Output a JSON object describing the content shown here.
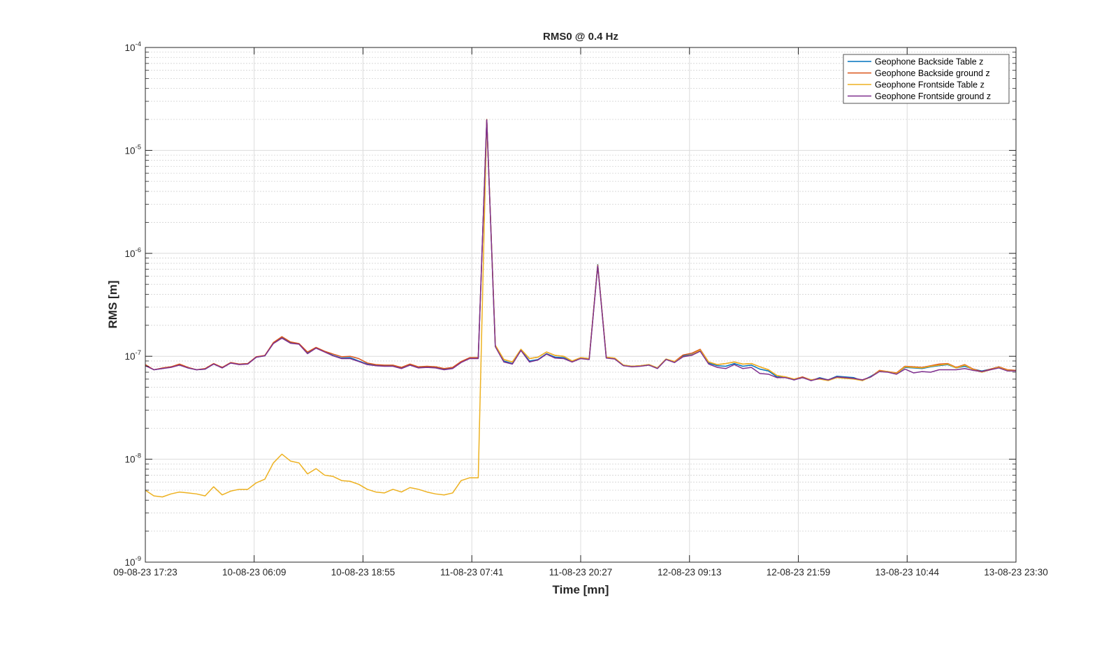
{
  "chart_data": {
    "type": "line",
    "title": "RMS0 @ 0.4 Hz",
    "xlabel": "Time [mn]",
    "ylabel": "RMS [m]",
    "yscale": "log",
    "ylim": [
      1e-09,
      0.0001
    ],
    "xlim": [
      "09-08-23 17:23",
      "13-08-23 23:30"
    ],
    "grid": true,
    "legend_location": "top-right",
    "x_tick_labels": [
      "09-08-23 17:23",
      "10-08-23 06:09",
      "10-08-23 18:55",
      "11-08-23 07:41",
      "11-08-23 20:27",
      "12-08-23 09:13",
      "12-08-23 21:59",
      "13-08-23 10:44",
      "13-08-23 23:30"
    ],
    "y_ticks": [
      {
        "base": "10",
        "exp": "-9"
      },
      {
        "base": "10",
        "exp": "-8"
      },
      {
        "base": "10",
        "exp": "-7"
      },
      {
        "base": "10",
        "exp": "-6"
      },
      {
        "base": "10",
        "exp": "-5"
      },
      {
        "base": "10",
        "exp": "-4"
      }
    ],
    "sample_interval_hours": 1,
    "series": [
      {
        "name": "Geophone Backside Table z",
        "color": "#0072BD",
        "values": [
          8.2e-08,
          7.4e-08,
          7.6e-08,
          7.9e-08,
          8.3e-08,
          7.7e-08,
          7.4e-08,
          7.5e-08,
          8.4e-08,
          7.8e-08,
          8.6e-08,
          8.4e-08,
          8.5e-08,
          9.8e-08,
          1.01e-07,
          1.34e-07,
          1.53e-07,
          1.36e-07,
          1.32e-07,
          1.08e-07,
          1.21e-07,
          1.11e-07,
          1.02e-07,
          9.6e-08,
          9.7e-08,
          9e-08,
          8.4e-08,
          8.2e-08,
          8.1e-08,
          8.1e-08,
          7.7e-08,
          8.3e-08,
          7.8e-08,
          7.9e-08,
          7.8e-08,
          7.5e-08,
          7.7e-08,
          8.8e-08,
          9.6e-08,
          9.6e-08,
          2e-05,
          1.25e-07,
          9e-08,
          8.5e-08,
          1.15e-07,
          9e-08,
          9.3e-08,
          1.06e-07,
          9.8e-08,
          9.7e-08,
          8.9e-08,
          9.6e-08,
          9.4e-08,
          7.8e-07,
          9.7e-08,
          9.5e-08,
          8.2e-08,
          8e-08,
          8.1e-08,
          8.3e-08,
          7.7e-08,
          9.4e-08,
          8.8e-08,
          1.01e-07,
          1.04e-07,
          1.14e-07,
          8.6e-08,
          8.1e-08,
          8e-08,
          8.5e-08,
          8e-08,
          8.2e-08,
          7.5e-08,
          7.2e-08,
          6.3e-08,
          6.3e-08,
          5.9e-08,
          6.3e-08,
          5.8e-08,
          6.2e-08,
          5.9e-08,
          6.4e-08,
          6.3e-08,
          6.2e-08,
          5.8e-08,
          6.4e-08,
          7.2e-08,
          7.1e-08,
          6.8e-08,
          7.8e-08,
          7.7e-08,
          7.6e-08,
          7.9e-08,
          8.1e-08,
          8.3e-08,
          7.7e-08,
          8e-08,
          7.5e-08,
          7.2e-08,
          7.5e-08,
          7.9e-08,
          7.3e-08,
          7.3e-08
        ]
      },
      {
        "name": "Geophone Backside ground z",
        "color": "#D95319",
        "values": [
          8.3e-08,
          7.4e-08,
          7.7e-08,
          7.9e-08,
          8.4e-08,
          7.8e-08,
          7.4e-08,
          7.6e-08,
          8.5e-08,
          7.8e-08,
          8.7e-08,
          8.4e-08,
          8.5e-08,
          9.9e-08,
          1.02e-07,
          1.36e-07,
          1.55e-07,
          1.38e-07,
          1.33e-07,
          1.1e-07,
          1.22e-07,
          1.12e-07,
          1.05e-07,
          9.9e-08,
          1e-07,
          9.5e-08,
          8.6e-08,
          8.3e-08,
          8.2e-08,
          8.2e-08,
          7.8e-08,
          8.4e-08,
          7.9e-08,
          8e-08,
          7.9e-08,
          7.6e-08,
          7.8e-08,
          8.9e-08,
          9.7e-08,
          9.7e-08,
          2e-05,
          1.28e-07,
          9.3e-08,
          8.8e-08,
          1.17e-07,
          9.5e-08,
          9.8e-08,
          1.1e-07,
          1.02e-07,
          1e-07,
          9e-08,
          9.7e-08,
          9.5e-08,
          7.7e-07,
          9.8e-08,
          9.6e-08,
          8.2e-08,
          8e-08,
          8.1e-08,
          8.3e-08,
          7.7e-08,
          9.4e-08,
          8.9e-08,
          1.03e-07,
          1.07e-07,
          1.17e-07,
          8.8e-08,
          8.3e-08,
          8.5e-08,
          8.8e-08,
          8.4e-08,
          8.5e-08,
          7.9e-08,
          7.4e-08,
          6.5e-08,
          6.3e-08,
          6e-08,
          6.3e-08,
          5.9e-08,
          6.1e-08,
          5.9e-08,
          6.3e-08,
          6.2e-08,
          6.1e-08,
          5.9e-08,
          6.3e-08,
          7.3e-08,
          7.1e-08,
          6.9e-08,
          8e-08,
          7.9e-08,
          7.8e-08,
          8.1e-08,
          8.4e-08,
          8.5e-08,
          7.8e-08,
          8.3e-08,
          7.5e-08,
          7.1e-08,
          7.5e-08,
          7.9e-08,
          7.4e-08,
          7.3e-08
        ]
      },
      {
        "name": "Geophone Frontside Table z",
        "color": "#EDB120",
        "values": [
          5e-09,
          4.4e-09,
          4.3e-09,
          4.6e-09,
          4.8e-09,
          4.7e-09,
          4.6e-09,
          4.4e-09,
          5.4e-09,
          4.5e-09,
          4.9e-09,
          5.1e-09,
          5.1e-09,
          5.9e-09,
          6.4e-09,
          9.2e-09,
          1.12e-08,
          9.6e-09,
          9.2e-09,
          7.2e-09,
          8.1e-09,
          7e-09,
          6.8e-09,
          6.2e-09,
          6.1e-09,
          5.7e-09,
          5.1e-09,
          4.8e-09,
          4.7e-09,
          5.1e-09,
          4.8e-09,
          5.3e-09,
          5.1e-09,
          4.8e-09,
          4.6e-09,
          4.5e-09,
          4.7e-09,
          6.2e-09,
          6.6e-09,
          6.6e-09,
          1.99e-05,
          1.28e-07,
          9.3e-08,
          8.8e-08,
          1.17e-07,
          9.5e-08,
          9.8e-08,
          1.1e-07,
          1.02e-07,
          1e-07,
          9e-08,
          9.7e-08,
          9.5e-08,
          7.7e-07,
          9.8e-08,
          9.6e-08,
          8.2e-08,
          8e-08,
          8.1e-08,
          8.3e-08,
          7.7e-08,
          9.4e-08,
          8.9e-08,
          9.9e-08,
          1.03e-07,
          1.15e-07,
          8.8e-08,
          8.3e-08,
          8.5e-08,
          8.8e-08,
          8.4e-08,
          8.5e-08,
          7.9e-08,
          7.4e-08,
          6.5e-08,
          6.3e-08,
          6e-08,
          6.2e-08,
          5.9e-08,
          6e-08,
          5.8e-08,
          6.2e-08,
          6.1e-08,
          6e-08,
          5.8e-08,
          6.3e-08,
          7.2e-08,
          7.1e-08,
          6.8e-08,
          7.9e-08,
          7.8e-08,
          7.7e-08,
          8e-08,
          8.2e-08,
          8.4e-08,
          7.7e-08,
          8.2e-08,
          7.4e-08,
          7e-08,
          7.4e-08,
          7.8e-08,
          7.3e-08,
          7.2e-08
        ]
      },
      {
        "name": "Geophone Frontside ground z",
        "color": "#7E2F8E",
        "values": [
          8.1e-08,
          7.4e-08,
          7.6e-08,
          7.8e-08,
          8.2e-08,
          7.7e-08,
          7.4e-08,
          7.5e-08,
          8.4e-08,
          7.7e-08,
          8.6e-08,
          8.3e-08,
          8.4e-08,
          9.8e-08,
          1.01e-07,
          1.33e-07,
          1.5e-07,
          1.34e-07,
          1.31e-07,
          1.06e-07,
          1.2e-07,
          1.1e-07,
          1.01e-07,
          9.5e-08,
          9.5e-08,
          8.9e-08,
          8.3e-08,
          8.1e-08,
          8e-08,
          8e-08,
          7.6e-08,
          8.2e-08,
          7.7e-08,
          7.8e-08,
          7.7e-08,
          7.4e-08,
          7.6e-08,
          8.7e-08,
          9.5e-08,
          9.5e-08,
          1.98e-05,
          1.24e-07,
          8.8e-08,
          8.4e-08,
          1.14e-07,
          8.8e-08,
          9.2e-08,
          1.05e-07,
          9.6e-08,
          9.5e-08,
          8.8e-08,
          9.5e-08,
          9.3e-08,
          7.6e-07,
          9.6e-08,
          9.4e-08,
          8.1e-08,
          7.9e-08,
          8e-08,
          8.2e-08,
          7.6e-08,
          9.3e-08,
          8.7e-08,
          9.9e-08,
          1.02e-07,
          1.12e-07,
          8.4e-08,
          7.8e-08,
          7.6e-08,
          8.3e-08,
          7.6e-08,
          7.8e-08,
          6.8e-08,
          6.7e-08,
          6.2e-08,
          6.2e-08,
          5.9e-08,
          6.2e-08,
          5.8e-08,
          6.1e-08,
          5.9e-08,
          6.3e-08,
          6.2e-08,
          6.1e-08,
          5.9e-08,
          6.3e-08,
          7.1e-08,
          7e-08,
          6.7e-08,
          7.5e-08,
          6.9e-08,
          7.1e-08,
          7e-08,
          7.4e-08,
          7.4e-08,
          7.4e-08,
          7.6e-08,
          7.3e-08,
          7.1e-08,
          7.4e-08,
          7.7e-08,
          7.2e-08,
          7.2e-08
        ]
      }
    ]
  }
}
